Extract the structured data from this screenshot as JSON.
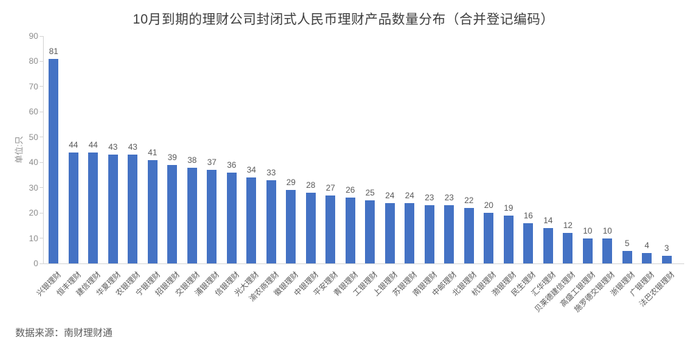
{
  "page": {
    "title": "10月到期的理财公司封闭式人民币理财产品数量分布（合并登记编码）",
    "source": "数据来源：南财理财通"
  },
  "chart_data": {
    "type": "bar",
    "title": "10月到期的理财公司封闭式人民币理财产品数量分布（合并登记编码）",
    "xlabel": "",
    "ylabel": "单位:只",
    "ylim": [
      0,
      90
    ],
    "ytick_step": 10,
    "grid": false,
    "legend_position": "none",
    "bar_color": "#4472C4",
    "categories": [
      "兴银理财",
      "恒丰理财",
      "建信理财",
      "华夏理财",
      "农银理财",
      "宁银理财",
      "招银理财",
      "交银理财",
      "浦银理财",
      "信银理财",
      "光大理财",
      "渝农商理财",
      "徽银理财",
      "中银理财",
      "平安理财",
      "青银理财",
      "工银理财",
      "上银理财",
      "苏银理财",
      "南银理财",
      "中邮理财",
      "北银理财",
      "杭银理财",
      "渤银理财",
      "民生理财",
      "汇华理财",
      "贝莱德建信理财",
      "高盛工银理财",
      "施罗德交银理财",
      "浙银理财",
      "广银理财",
      "法巴农银理财"
    ],
    "values": [
      81,
      44,
      44,
      43,
      43,
      41,
      39,
      38,
      37,
      36,
      34,
      33,
      29,
      28,
      27,
      26,
      25,
      24,
      24,
      23,
      23,
      22,
      20,
      19,
      16,
      14,
      12,
      10,
      10,
      5,
      4,
      3
    ]
  },
  "colors": {
    "background": "#ffffff",
    "bar": "#4472C4",
    "title_text": "#3d3d3d",
    "axis_line": "#d6d6d6",
    "tick_text": "#8c8c8c",
    "value_text": "#595959",
    "category_text": "#595959",
    "source_text": "#595959"
  }
}
